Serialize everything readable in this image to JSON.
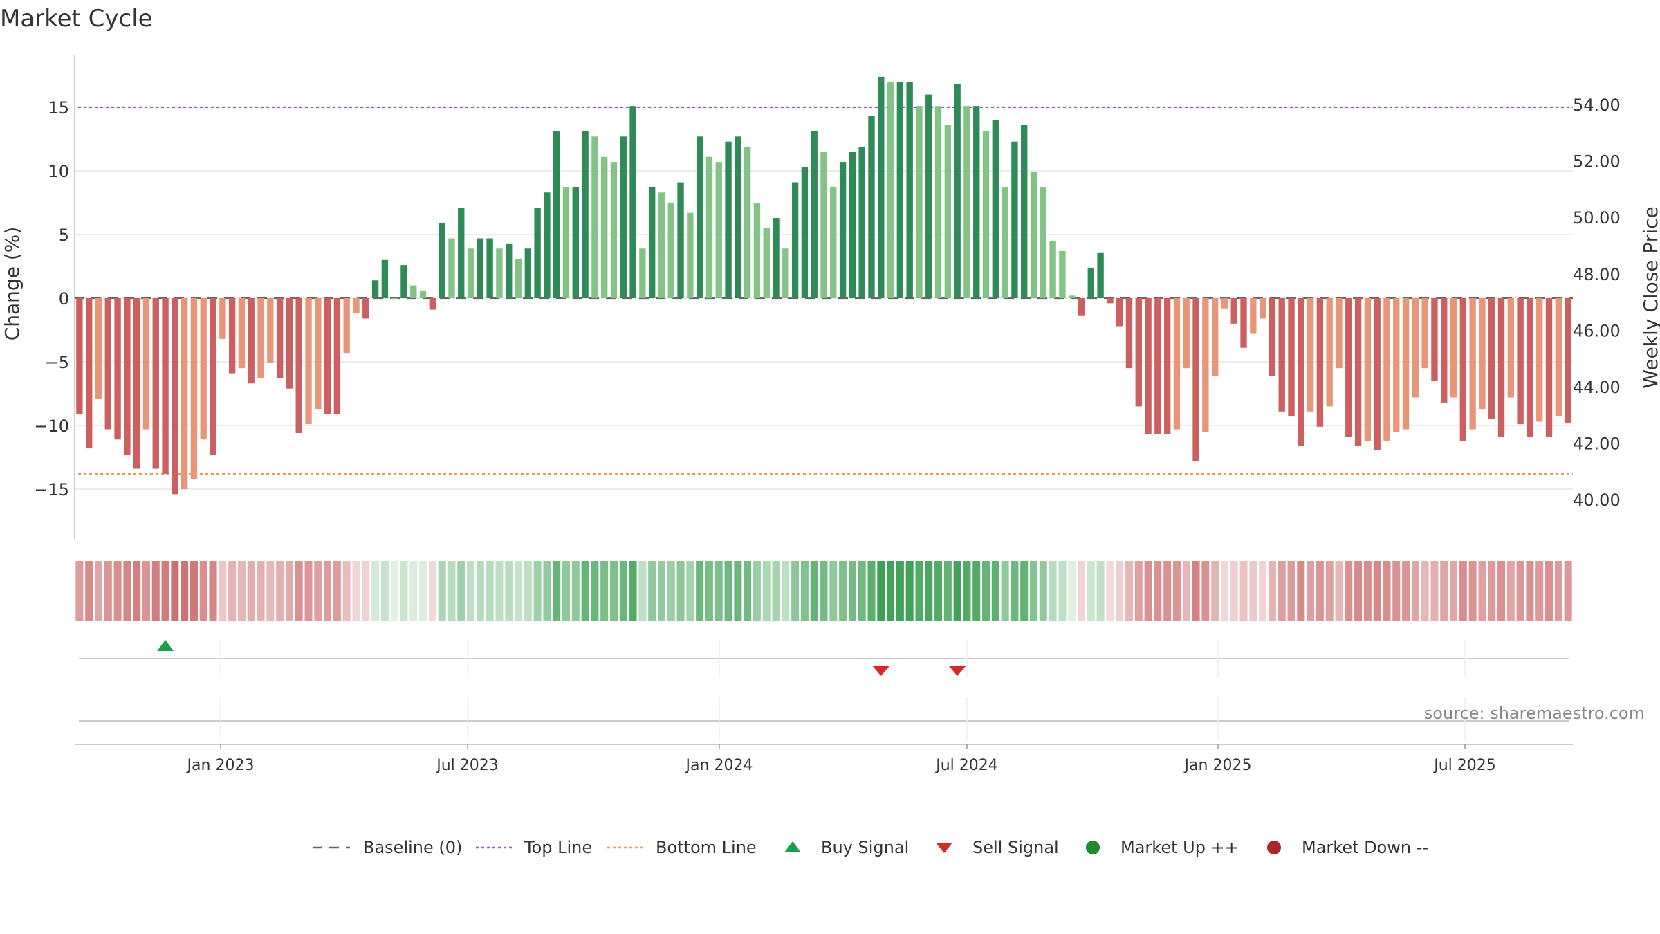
{
  "chart_data": {
    "type": "bar",
    "title": "Market Cycle",
    "ylabel_left": "Change (%)",
    "ylabel_right": "Weekly Close Price",
    "left_axis": {
      "ylim": [
        -19,
        19
      ],
      "ticks": [
        15,
        10,
        5,
        0,
        -5,
        -10,
        -15
      ],
      "tick_labels": [
        "15",
        "10",
        "5",
        "0",
        "−5",
        "−10",
        "−15"
      ]
    },
    "right_axis": {
      "ticks": [
        54,
        52,
        50,
        48,
        46,
        44,
        42,
        40
      ],
      "tick_labels": [
        "54.00",
        "52.00",
        "50.00",
        "48.00",
        "46.00",
        "44.00",
        "42.00",
        "40.00"
      ]
    },
    "x_ticks": [
      "Jan 2023",
      "Jul 2023",
      "Jan 2024",
      "Jul 2024",
      "Jan 2025",
      "Jul 2025"
    ],
    "grid": true,
    "reference_lines": [
      {
        "name": "Baseline (0)",
        "value": 0,
        "style": "dashed",
        "color": "#666666"
      },
      {
        "name": "Top Line",
        "value": 15.0,
        "style": "dotted",
        "color": "#9b59d0"
      },
      {
        "name": "Bottom Line",
        "value": -13.8,
        "style": "dotted",
        "color": "#e0a050"
      }
    ],
    "series": {
      "values": [
        -9.1,
        -11.8,
        -7.9,
        -10.3,
        -11.1,
        -12.3,
        -13.4,
        -10.3,
        -13.4,
        -13.8,
        -15.4,
        -15.0,
        -14.2,
        -11.1,
        -12.3,
        -3.2,
        -5.9,
        -5.5,
        -6.7,
        -6.3,
        -5.1,
        -6.3,
        -7.1,
        -10.6,
        -9.9,
        -8.7,
        -9.1,
        -9.1,
        -4.3,
        -1.2,
        -1.6,
        1.4,
        3.0,
        0.0,
        2.6,
        1.0,
        0.6,
        -0.9,
        5.9,
        4.7,
        7.1,
        3.9,
        4.7,
        4.7,
        3.9,
        4.3,
        3.1,
        3.9,
        7.1,
        8.3,
        13.1,
        8.7,
        8.7,
        13.1,
        12.7,
        11.1,
        10.7,
        12.7,
        15.1,
        3.9,
        8.7,
        8.3,
        7.5,
        9.1,
        6.7,
        12.7,
        11.1,
        10.7,
        12.3,
        12.7,
        11.9,
        7.5,
        5.5,
        6.3,
        3.9,
        9.1,
        10.3,
        13.1,
        11.5,
        8.7,
        10.7,
        11.5,
        11.9,
        14.3,
        17.4,
        17.0,
        17.0,
        17.0,
        15.1,
        16.0,
        15.1,
        13.6,
        16.8,
        15.1,
        15.1,
        13.1,
        14.0,
        8.7,
        12.3,
        13.6,
        9.9,
        8.7,
        4.5,
        3.7,
        0.2,
        -1.4,
        2.4,
        3.6,
        -0.4,
        -2.2,
        -5.5,
        -8.5,
        -10.7,
        -10.7,
        -10.7,
        -10.3,
        -5.5,
        -12.8,
        -10.5,
        -6.1,
        -0.8,
        -2.0,
        -3.9,
        -2.8,
        -1.6,
        -6.1,
        -8.9,
        -9.3,
        -11.6,
        -8.9,
        -10.1,
        -8.5,
        -5.5,
        -10.9,
        -11.6,
        -11.2,
        -11.9,
        -11.2,
        -10.5,
        -10.3,
        -7.8,
        -5.5,
        -6.5,
        -8.2,
        -7.8,
        -11.2,
        -10.3,
        -8.7,
        -9.5,
        -10.9,
        -7.8,
        -9.9,
        -10.9,
        -9.7,
        -10.9,
        -9.3,
        -9.8
      ],
      "colors": {
        "strong_up": "#2e8b57",
        "weak_up": "#85c285",
        "strong_down": "#cc5f5f",
        "weak_down": "#e8967a"
      }
    },
    "signals": [
      {
        "type": "Buy Signal",
        "week_index": 9,
        "color": "#1aa04a"
      },
      {
        "type": "Sell Signal",
        "week_index": 84,
        "color": "#d42a2a"
      },
      {
        "type": "Sell Signal",
        "week_index": 92,
        "color": "#d42a2a"
      }
    ],
    "legend_position": "bottom",
    "legend": [
      {
        "label": "Baseline (0)",
        "symbol": "dash",
        "color": "#666666"
      },
      {
        "label": "Top Line",
        "symbol": "dotted",
        "color": "#9b59d0"
      },
      {
        "label": "Bottom Line",
        "symbol": "dotted",
        "color": "#e0a050"
      },
      {
        "label": "Buy Signal",
        "symbol": "triangle-up",
        "color": "#1aa04a"
      },
      {
        "label": "Sell Signal",
        "symbol": "triangle-down",
        "color": "#d42a2a"
      },
      {
        "label": "Market Up ++",
        "symbol": "circle",
        "color": "#1f8a2e"
      },
      {
        "label": "Market Down --",
        "symbol": "circle",
        "color": "#b02525"
      }
    ],
    "source": "source: sharemaestro.com"
  }
}
